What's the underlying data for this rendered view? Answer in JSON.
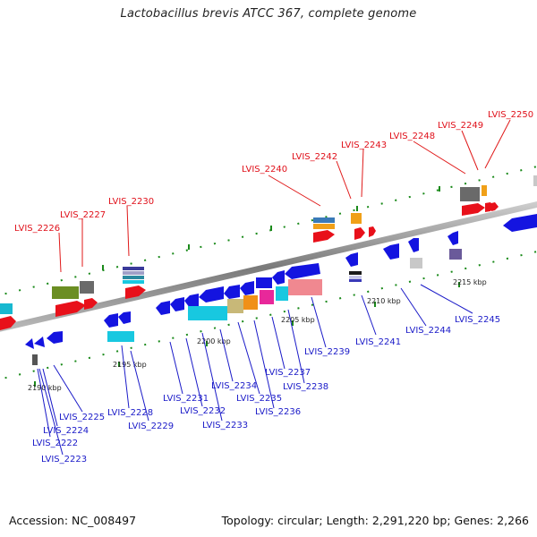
{
  "title": "Lactobacillus brevis ATCC 367, complete genome",
  "footer": {
    "accession": "Accession: NC_008497",
    "summary": "Topology: circular; Length: 2,291,220 bp; Genes: 2,266"
  },
  "scale_labels": [
    "2190 kbp",
    "2195 kbp",
    "2200 kbp",
    "2205 kbp",
    "2210 kbp",
    "2215 kbp"
  ],
  "gene_labels_top": [
    "LVIS_2226",
    "LVIS_2227",
    "LVIS_2230",
    "LVIS_2240",
    "LVIS_2242",
    "LVIS_2243",
    "LVIS_2248",
    "LVIS_2249",
    "LVIS_2250"
  ],
  "gene_labels_bottom": [
    "LVIS_2222",
    "LVIS_2223",
    "LVIS_2224",
    "LVIS_2225",
    "LVIS_2228",
    "LVIS_2229",
    "LVIS_2231",
    "LVIS_2232",
    "LVIS_2233",
    "LVIS_2234",
    "LVIS_2235",
    "LVIS_2236",
    "LVIS_2237",
    "LVIS_2238",
    "LVIS_2239",
    "LVIS_2241",
    "LVIS_2244",
    "LVIS_2245"
  ],
  "colors": {
    "forward_label": "#e0101a",
    "reverse_label": "#1a1ac8",
    "backbone": "#8a8a8a",
    "tick": "#1a8a1a"
  }
}
